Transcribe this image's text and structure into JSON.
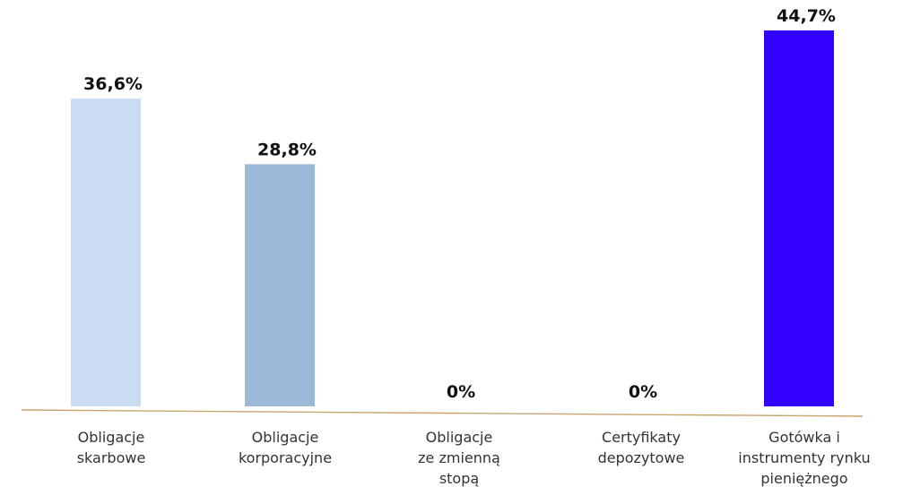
{
  "chart_data": {
    "type": "bar",
    "categories": [
      [
        "Obligacje",
        "skarbowe"
      ],
      [
        "Obligacje",
        "korporacyjne"
      ],
      [
        "Obligacje",
        "ze zmienną",
        "stopą"
      ],
      [
        "Certyfikaty",
        "depozytowe"
      ],
      [
        "Gotówka i",
        "instrumenty rynku",
        "pieniężnego"
      ]
    ],
    "values": [
      36.6,
      28.8,
      0,
      0,
      44.7
    ],
    "value_labels": [
      "36,6%",
      "28,8%",
      "0%",
      "0%",
      "44,7%"
    ],
    "colors": [
      "#c9dcf2",
      "#9db9d8",
      "#c9dcf2",
      "#c9dcf2",
      "#3300ff"
    ],
    "axis_color": "#c8a46e",
    "title": "",
    "xlabel": "",
    "ylabel": "",
    "ylim": [
      0,
      44.7
    ],
    "grid": false,
    "legend": "none"
  }
}
